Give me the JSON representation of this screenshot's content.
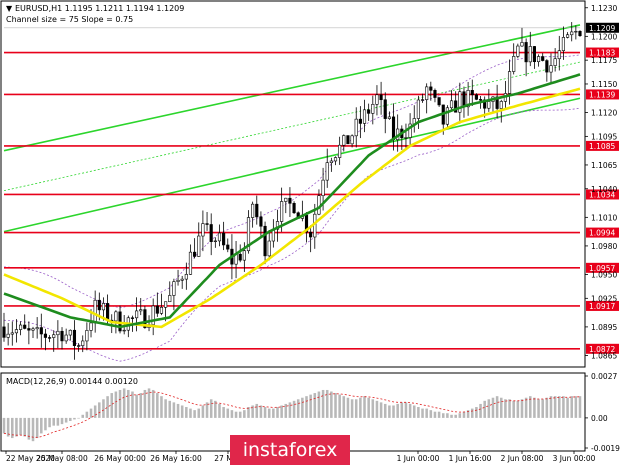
{
  "chart_data": {
    "type": "candlestick",
    "symbol_line": "EURUSD,H1  1.1195 1.1211 1.1194 1.1209",
    "channel_note": "Channel size = 75 Slope = 0.75",
    "price_axis_ticks": [
      "1.1230",
      "1.1200",
      "1.1175",
      "1.1150",
      "1.1120",
      "1.1095",
      "1.1065",
      "1.1040",
      "1.1010",
      "1.0980",
      "1.0950",
      "1.0925",
      "1.0895",
      "1.0865"
    ],
    "price_range": [
      1.0855,
      1.1235
    ],
    "levels": [
      {
        "value": 1.1209,
        "label": "1.1209",
        "kind": "current"
      },
      {
        "value": 1.1183,
        "label": "1.1183",
        "kind": "level"
      },
      {
        "value": 1.1139,
        "label": "1.1139",
        "kind": "level"
      },
      {
        "value": 1.1085,
        "label": "1.1085",
        "kind": "level"
      },
      {
        "value": 1.1034,
        "label": "1.1034",
        "kind": "level"
      },
      {
        "value": 1.0994,
        "label": "1.0994",
        "kind": "level"
      },
      {
        "value": 1.0957,
        "label": "1.0957",
        "kind": "level"
      },
      {
        "value": 1.0917,
        "label": "1.0917",
        "kind": "level"
      },
      {
        "value": 1.0872,
        "label": "1.0872",
        "kind": "level"
      }
    ],
    "time_labels": [
      "22 May 2020",
      "25 May 08:00",
      "26 May 00:00",
      "26 May 16:00",
      "27 May",
      "1 Jun 00:00",
      "1 Jun 16:00",
      "2 Jun 08:00",
      "3 Jun 00:00"
    ],
    "bar_count": 140,
    "price_path": [
      [
        0,
        1.0895
      ],
      [
        8,
        1.0885
      ],
      [
        14,
        1.089
      ],
      [
        18,
        1.0875
      ],
      [
        22,
        1.0915
      ],
      [
        28,
        1.09
      ],
      [
        34,
        1.0905
      ],
      [
        40,
        1.0925
      ],
      [
        44,
        1.096
      ],
      [
        48,
        1.0995
      ],
      [
        52,
        1.0985
      ],
      [
        55,
        1.0965
      ],
      [
        58,
        1.0975
      ],
      [
        60,
        1.1025
      ],
      [
        63,
        1.098
      ],
      [
        66,
        1.1015
      ],
      [
        70,
        1.1025
      ],
      [
        74,
        1.0995
      ],
      [
        78,
        1.1075
      ],
      [
        82,
        1.1085
      ],
      [
        86,
        1.111
      ],
      [
        90,
        1.1135
      ],
      [
        94,
        1.1095
      ],
      [
        98,
        1.1105
      ],
      [
        102,
        1.1145
      ],
      [
        106,
        1.111
      ],
      [
        110,
        1.1135
      ],
      [
        116,
        1.113
      ],
      [
        120,
        1.1125
      ],
      [
        124,
        1.1185
      ],
      [
        128,
        1.118
      ],
      [
        132,
        1.117
      ],
      [
        136,
        1.1195
      ],
      [
        139,
        1.1209
      ]
    ],
    "indicators": {
      "ma_green": {
        "name": "",
        "color": "#1e8c1e",
        "path": [
          [
            0,
            1.093
          ],
          [
            16,
            1.0905
          ],
          [
            28,
            1.0895
          ],
          [
            40,
            1.0905
          ],
          [
            52,
            1.096
          ],
          [
            64,
            1.0995
          ],
          [
            76,
            1.102
          ],
          [
            88,
            1.1075
          ],
          [
            100,
            1.111
          ],
          [
            112,
            1.1128
          ],
          [
            124,
            1.114
          ],
          [
            139,
            1.116
          ]
        ]
      },
      "ma_yellow": {
        "name": "",
        "color": "#f2e600",
        "path": [
          [
            0,
            1.095
          ],
          [
            14,
            1.0925
          ],
          [
            26,
            1.09
          ],
          [
            38,
            1.0895
          ],
          [
            50,
            1.0925
          ],
          [
            62,
            1.096
          ],
          [
            74,
            1.1
          ],
          [
            86,
            1.1045
          ],
          [
            98,
            1.1085
          ],
          [
            110,
            1.111
          ],
          [
            122,
            1.1125
          ],
          [
            139,
            1.1145
          ]
        ]
      },
      "channel_color": "#2cd52c",
      "channel_upper": [
        [
          0,
          1.108
        ],
        [
          139,
          1.1212
        ]
      ],
      "channel_lower": [
        [
          0,
          1.0995
        ],
        [
          139,
          1.1135
        ]
      ],
      "channel_mid": [
        [
          0,
          1.1038
        ],
        [
          139,
          1.1173
        ]
      ],
      "envelope_color": "#9a5ec8"
    },
    "macd": {
      "label": "MACD(12,26,9) 0.00144 0.00120",
      "axis_ticks": [
        "0.0027",
        "0.00",
        "-0.00194"
      ],
      "range": [
        -0.00194,
        0.0027
      ],
      "values": [
        -0.001,
        -0.0012,
        -0.0013,
        -0.0012,
        -0.0011,
        -0.0012,
        -0.0014,
        -0.0015,
        -0.0013,
        -0.001,
        -0.0008,
        -0.0006,
        -0.0005,
        -0.0005,
        -0.0004,
        -0.0003,
        -0.0002,
        -0.0001,
        0.0,
        0.0002,
        0.0004,
        0.0006,
        0.0008,
        0.001,
        0.0012,
        0.0014,
        0.0016,
        0.0017,
        0.0018,
        0.0019,
        0.0018,
        0.0017,
        0.0015,
        0.0016,
        0.0018,
        0.0019,
        0.0018,
        0.0016,
        0.0014,
        0.0012,
        0.0011,
        0.001,
        0.0009,
        0.0008,
        0.0007,
        0.0006,
        0.0005,
        0.0006,
        0.0008,
        0.001,
        0.0012,
        0.0011,
        0.0009,
        0.0007,
        0.0006,
        0.0005,
        0.0004,
        0.0004,
        0.0005,
        0.0007,
        0.0008,
        0.0009,
        0.0008,
        0.0007,
        0.0006,
        0.0006,
        0.0007,
        0.0008,
        0.0009,
        0.001,
        0.0011,
        0.0012,
        0.0013,
        0.0014,
        0.0015,
        0.0016,
        0.0017,
        0.0018,
        0.0018,
        0.0017,
        0.0016,
        0.0015,
        0.0014,
        0.0013,
        0.0012,
        0.0012,
        0.0013,
        0.0014,
        0.0013,
        0.0012,
        0.0011,
        0.001,
        0.0009,
        0.0008,
        0.0008,
        0.0009,
        0.001,
        0.001,
        0.0009,
        0.0008,
        0.0007,
        0.0006,
        0.0006,
        0.0005,
        0.0004,
        0.0004,
        0.0003,
        0.0003,
        0.0002,
        0.0002,
        0.0003,
        0.0004,
        0.0005,
        0.0006,
        0.0007,
        0.0009,
        0.0011,
        0.0012,
        0.0013,
        0.0014,
        0.0013,
        0.0012,
        0.0012,
        0.0011,
        0.0011,
        0.0012,
        0.0013,
        0.0014,
        0.0013,
        0.0012,
        0.0012,
        0.0013,
        0.0014,
        0.0014,
        0.0014,
        0.0014,
        0.0013,
        0.0014,
        0.0014,
        0.0014
      ],
      "signal_color": "#e02020"
    },
    "colors": {
      "level_line": "#e8001a",
      "current_box": "#000000",
      "up_candle": "#ffffff",
      "down_candle": "#000000"
    }
  },
  "watermark": {
    "text": "instaforex",
    "bg": "#e0264a"
  }
}
